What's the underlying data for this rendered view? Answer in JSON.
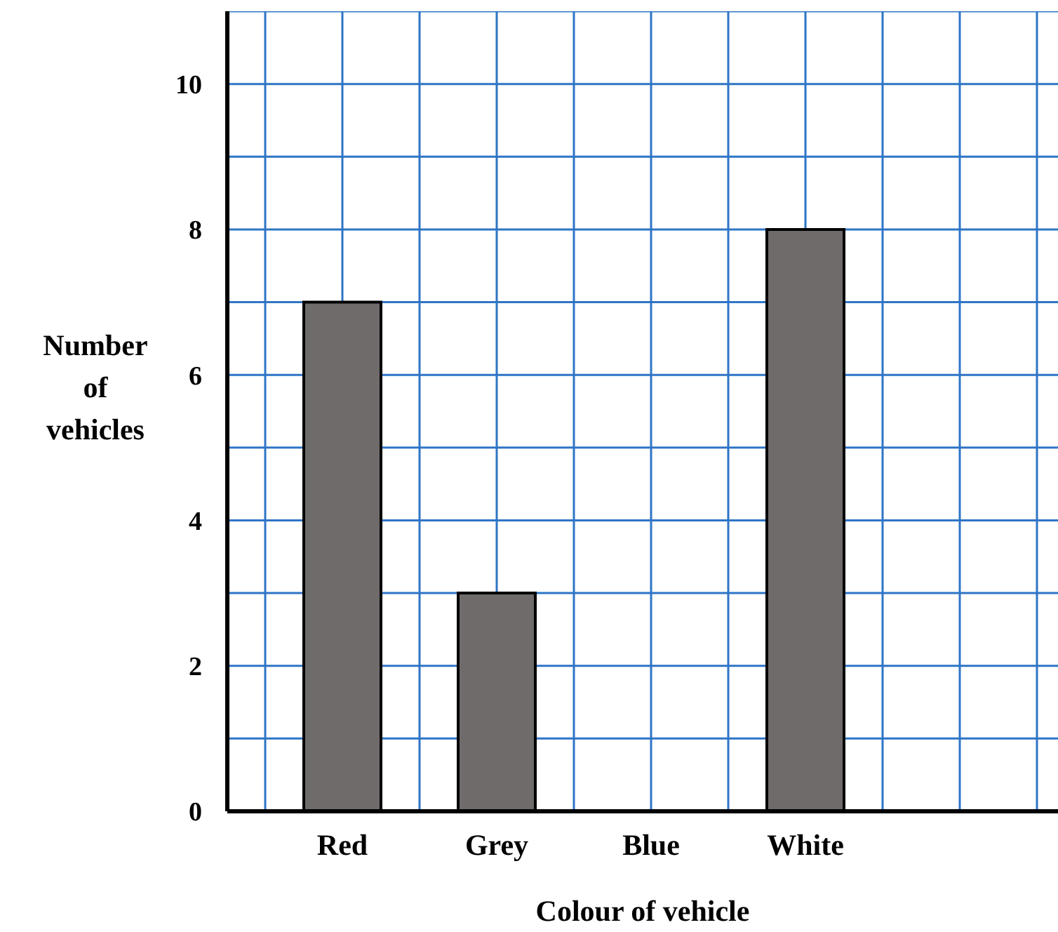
{
  "chart_data": {
    "type": "bar",
    "xlabel": "Colour of vehicle",
    "ylabel": "Number of vehicles",
    "categories": [
      "Red",
      "Grey",
      "Blue",
      "White"
    ],
    "values": [
      7,
      3,
      0,
      8
    ],
    "color": "#6f6b6b",
    "ylim": [
      0,
      11
    ],
    "yticks": [
      0,
      {
        "value": 1,
        "label": null
      },
      2,
      {
        "value": 3,
        "label": null
      },
      4,
      {
        "value": 5,
        "label": null
      },
      6,
      {
        "value": 7,
        "label": null
      },
      8,
      {
        "value": 9,
        "label": null
      },
      10,
      {
        "value": 11,
        "label": null
      }
    ],
    "grid": true
  }
}
